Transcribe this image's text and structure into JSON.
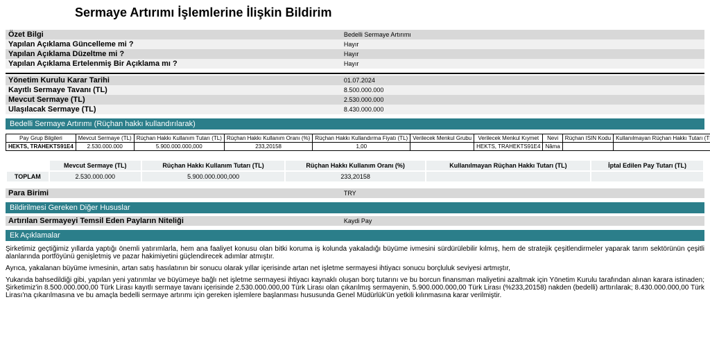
{
  "title": "Sermaye Artırımı İşlemlerine İlişkin Bildirim",
  "summary": {
    "rows": [
      {
        "label": "Özet Bilgi",
        "value": "Bedelli Sermaye Artırımı",
        "cls": "gray-row"
      },
      {
        "label": "Yapılan Açıklama Güncelleme mi ?",
        "value": "Hayır",
        "cls": "lightgray-row"
      },
      {
        "label": "Yapılan Açıklama Düzeltme mi ?",
        "value": "Hayır",
        "cls": "gray-row"
      },
      {
        "label": "Yapılan Açıklama Ertelenmiş Bir Açıklama mı ?",
        "value": "Hayır",
        "cls": "lightgray-row"
      }
    ]
  },
  "decision": {
    "rows": [
      {
        "label": "Yönetim Kurulu Karar Tarihi",
        "value": "01.07.2024",
        "cls": "gray-row"
      },
      {
        "label": "Kayıtlı Sermaye Tavanı (TL)",
        "value": "8.500.000.000",
        "cls": "lightgray-row"
      },
      {
        "label": "Mevcut Sermaye (TL)",
        "value": "2.530.000.000",
        "cls": "gray-row"
      },
      {
        "label": "Ulaşılacak Sermaye (TL)",
        "value": "8.430.000.000",
        "cls": "lightgray-row"
      }
    ]
  },
  "section1": "Bedelli Sermaye Artırımı (Rüçhan hakkı kullandırılarak)",
  "detail": {
    "headers": [
      "Pay Grup Bilgileri",
      "Mevcut Sermaye (TL)",
      "Rüçhan Hakkı Kullanım Tutarı (TL)",
      "Rüçhan Hakkı Kullanım Oranı (%)",
      "Rüçhan Hakkı Kullandırma Fiyatı (TL)",
      "Verilecek Menkul Grubu",
      "Verilecek Menkul Kıymet",
      "Nevi",
      "Rüçhan ISIN Kodu",
      "Kullanılmayan Rüçhan Hakkı Tutarı (TL)",
      "İptal Edilen Pay Tutarı (TL)"
    ],
    "row": [
      "HEKTS, TRAHEKTS91E4",
      "2.530.000.000",
      "5.900.000.000,000",
      "233,20158",
      "1,00",
      "",
      "HEKTS, TRAHEKTS91E4",
      "Nâma",
      "",
      "",
      ""
    ]
  },
  "sums": {
    "headers": [
      "",
      "Mevcut Sermaye (TL)",
      "Rüçhan Hakkı Kullanım Tutarı (TL)",
      "Rüçhan Hakkı Kullanım Oranı (%)",
      "Kullanılmayan Rüçhan Hakkı Tutarı (TL)",
      "İptal Edilen Pay Tutarı (TL)"
    ],
    "row": [
      "TOPLAM",
      "2.530.000.000",
      "5.900.000.000,000",
      "233,20158",
      "",
      ""
    ]
  },
  "currency": {
    "label": "Para Birimi",
    "value": "TRY"
  },
  "section2": "Bildirilmesi Gereken Diğer Hususlar",
  "nature": {
    "label": "Artırılan Sermayeyi Temsil Eden Payların Niteliği",
    "value": "Kaydi Pay"
  },
  "section3": "Ek Açıklamalar",
  "paras": [
    "Şirketimiz geçtiğimiz yıllarda yaptığı önemli yatırımlarla, hem ana faaliyet konusu olan bitki koruma iş kolunda yakaladığı büyüme ivmesini sürdürülebilir kılmış, hem de stratejik çeşitlendirmeler yaparak tarım sektörünün çeşitli alanlarında portföyünü genişletmiş ve pazar hakimiyetini güçlendirecek adımlar atmıştır.",
    "Ayrıca, yakalanan büyüme ivmesinin, artan satış hasılatının bir sonucu olarak yıllar içerisinde artan net işletme sermayesi ihtiyacı sonucu borçluluk seviyesi artmıştır,",
    "Yukarıda bahsedildiği gibi, yapılan yeni yatırımlar ve büyümeye bağlı net işletme sermayesi ihtiyacı kaynaklı oluşan borç tutarını ve bu borcun finansman maliyetini azaltmak için Yönetim Kurulu tarafından alınan karara istinaden; Şirketimiz'in 8.500.000.000,00 Türk Lirası kayıtlı sermaye tavanı içerisinde 2.530.000.000,00 Türk Lirası olan çıkarılmış sermayenin, 5.900.000.000,00 Türk Lirası (%233,20158) nakden (bedelli) arttırılarak; 8.430.000.000,00 Türk Lirası'na çıkarılmasına ve bu amaçla bedelli sermaye artırımı için gereken işlemlere başlanması hususunda Genel Müdürlük'ün yetkili kılınmasına karar verilmiştir."
  ]
}
